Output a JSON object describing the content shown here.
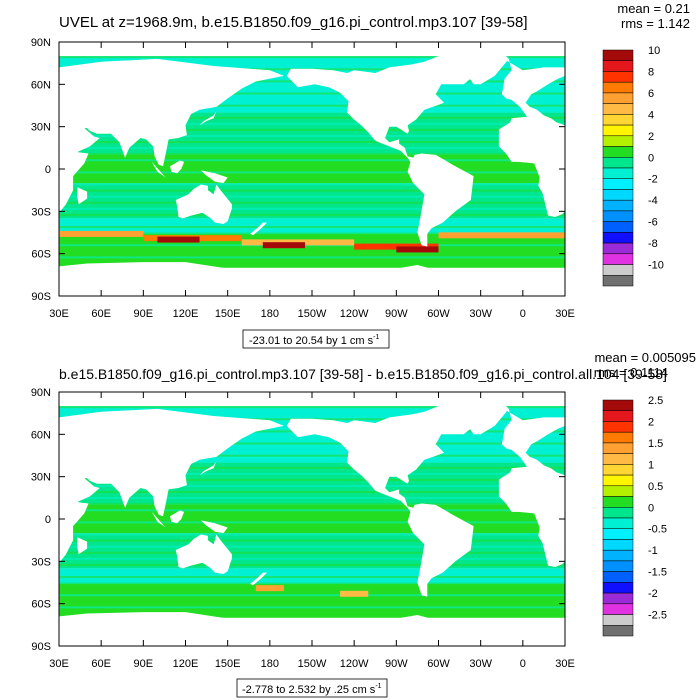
{
  "chart_data": [
    {
      "type": "heatmap",
      "title": "UVEL at z=1968.9m, b.e15.B1850.f09_g16.pi_control.mp3.107 [39-58]",
      "stats": {
        "mean": "mean = 0.21",
        "rms": "rms = 1.142"
      },
      "xlabel": "",
      "ylabel": "",
      "x_ticks": [
        "30E",
        "60E",
        "90E",
        "120E",
        "150E",
        "180",
        "150W",
        "120W",
        "90W",
        "60W",
        "30W",
        "0",
        "30E"
      ],
      "y_ticks": [
        "90N",
        "60N",
        "30N",
        "0",
        "30S",
        "60S",
        "90S"
      ],
      "xlim": [
        30,
        390
      ],
      "ylim": [
        -90,
        90
      ],
      "range_label": "-23.01 to 20.54 by 1 cm s",
      "range_unit_sup": "-1",
      "colorbar_labels": [
        "10",
        "8",
        "6",
        "4",
        "2",
        "0",
        "-2",
        "-4",
        "-6",
        "-8",
        "-10"
      ],
      "colorbar_levels": 22
    },
    {
      "type": "heatmap",
      "title": "b.e15.B1850.f09_g16.pi_control.mp3.107 [39-58] - b.e15.B1850.f09_g16.pi_control.all.104 [39-58]",
      "stats": {
        "mean": "mean = 0.005095",
        "rms": "rms = 0.1114"
      },
      "xlabel": "",
      "ylabel": "",
      "x_ticks": [
        "30E",
        "60E",
        "90E",
        "120E",
        "150E",
        "180",
        "150W",
        "120W",
        "90W",
        "60W",
        "30W",
        "0",
        "30E"
      ],
      "y_ticks": [
        "90N",
        "60N",
        "30N",
        "0",
        "30S",
        "60S",
        "90S"
      ],
      "xlim": [
        30,
        390
      ],
      "ylim": [
        -90,
        90
      ],
      "range_label": "-2.778 to 2.532 by .25 cm s",
      "range_unit_sup": "-1",
      "colorbar_labels": [
        "2.5",
        "2",
        "1.5",
        "1",
        "0.5",
        "0",
        "-0.5",
        "-1",
        "-1.5",
        "-2",
        "-2.5"
      ],
      "colorbar_levels": 22
    }
  ],
  "colors": {
    "palette": [
      "#a50a0a",
      "#e3171c",
      "#ff3300",
      "#ff7a00",
      "#ffa033",
      "#ffb945",
      "#ffd633",
      "#fff500",
      "#b4f000",
      "#22dd22",
      "#00e68c",
      "#00f0d4",
      "#00f0ff",
      "#00d8ff",
      "#00b2ff",
      "#0090ff",
      "#0060ff",
      "#1010ff",
      "#9b2bd6",
      "#e032e0",
      "#cccccc",
      "#707070"
    ],
    "ocean_primary": "#22e6c8",
    "ocean_secondary": "#4ce05a",
    "ocean_anomaly_high": "#ffa033",
    "ocean_anomaly_max": "#a50a0a",
    "land": "#ffffff",
    "frame": "#000000"
  }
}
